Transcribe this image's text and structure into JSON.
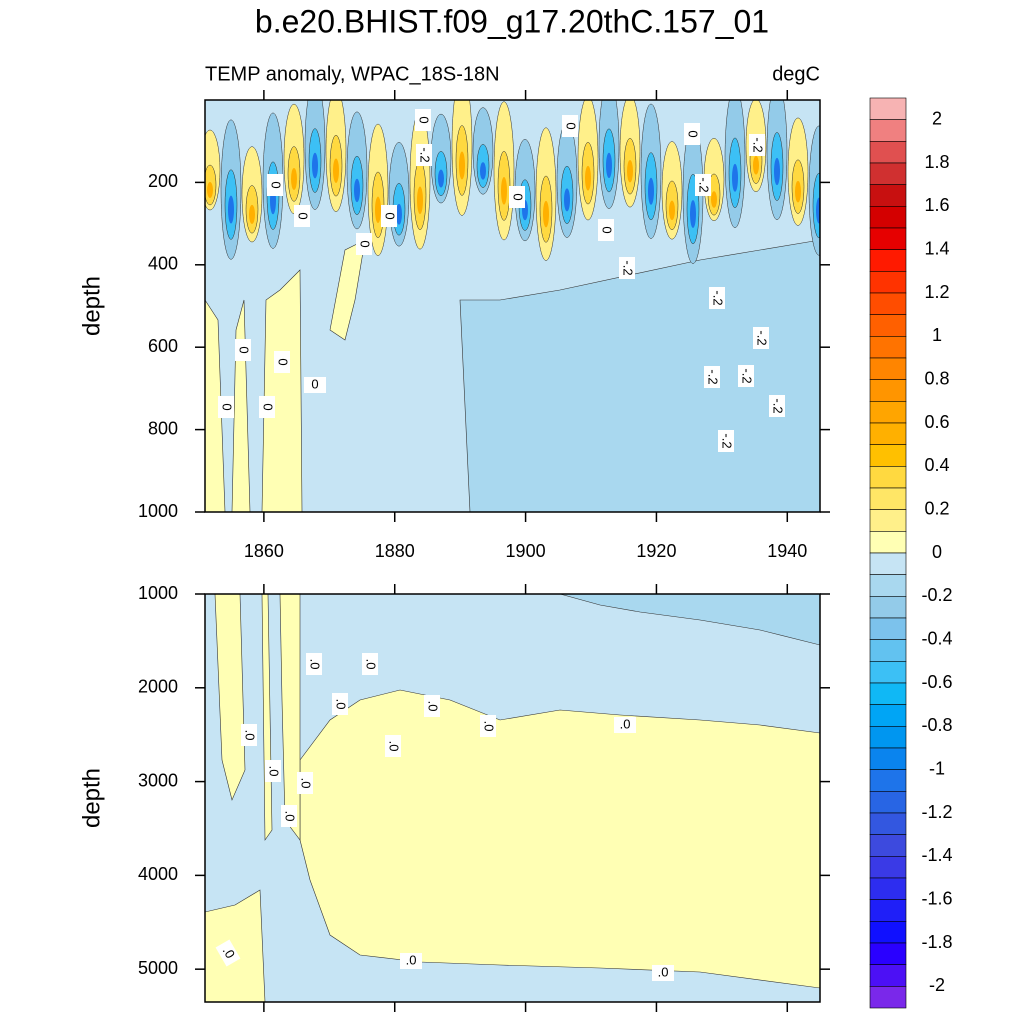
{
  "chart_data": [
    {
      "type": "contour",
      "title": "b.e20.BHIST.f09_g17.20thC.157_01",
      "subtitle_left": "TEMP anomaly, WPAC_18S-18N",
      "subtitle_right": "degC",
      "ylabel": "depth",
      "xlim": [
        1851,
        1945
      ],
      "xticks": [
        1860,
        1880,
        1900,
        1920,
        1940
      ],
      "ylim": [
        0,
        1000
      ],
      "yticks": [
        200,
        400,
        600,
        800,
        1000
      ],
      "contour_labels": [
        "0",
        "0",
        "0",
        "-.2",
        "-.2",
        "0",
        "0",
        "-.2",
        "0",
        "0",
        "0",
        "0",
        "-.2",
        "-.2",
        "-.2",
        "0",
        "0",
        "0",
        "-.2",
        "-.2",
        "0",
        "0",
        "-.2",
        "-.2"
      ]
    },
    {
      "type": "contour",
      "ylabel": "depth",
      "xlim": [
        1851,
        1945
      ],
      "xticks": [
        1860,
        1880,
        1900,
        1920,
        1940
      ],
      "ylim": [
        1000,
        5350
      ],
      "yticks": [
        1000,
        2000,
        3000,
        4000,
        5000
      ],
      "contour_labels": [
        ".0",
        ".0",
        ".0",
        ".0",
        ".0",
        ".0",
        ".0",
        ".0",
        ".0",
        ".0",
        ".0",
        ".0",
        ".0",
        ".0"
      ]
    },
    {
      "type": "colorbar",
      "lim": [
        -2,
        2
      ],
      "ticks": [
        2,
        1.8,
        1.6,
        1.4,
        1.2,
        1,
        0.8,
        0.6,
        0.4,
        0.2,
        0,
        -0.2,
        -0.4,
        -0.6,
        -0.8,
        -1,
        -1.2,
        -1.4,
        -1.6,
        -1.8,
        -2
      ],
      "colors": [
        "#f7b3b3",
        "#f08080",
        "#e05050",
        "#d03030",
        "#c81010",
        "#d40000",
        "#e60000",
        "#ff1a00",
        "#ff3300",
        "#ff4d00",
        "#ff6000",
        "#ff7300",
        "#ff8500",
        "#ff9500",
        "#ffa500",
        "#ffb000",
        "#ffc000",
        "#ffd940",
        "#ffe666",
        "#fff08a",
        "#ffffb4",
        "#c6e4f4",
        "#a9d8ef",
        "#93cbe9",
        "#7cc2ec",
        "#62c2f0",
        "#3cc0f5",
        "#10b8f5",
        "#00a5f5",
        "#0096f0",
        "#0a84ee",
        "#1e74ea",
        "#2865e4",
        "#3357e0",
        "#3d4ade",
        "#3a3ae6",
        "#2d2df0",
        "#1f1ff8",
        "#1010ff",
        "#2a00ff",
        "#4c10f5",
        "#7a28ea"
      ]
    }
  ]
}
